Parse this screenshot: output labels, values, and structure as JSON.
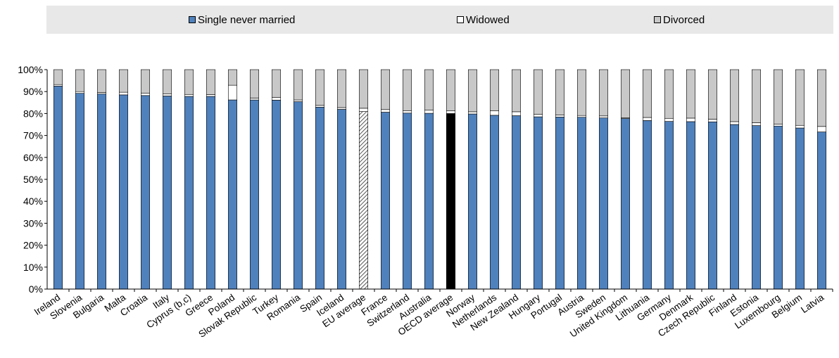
{
  "legend": [
    {
      "label": "Single never married",
      "color": "#4f81bd"
    },
    {
      "label": "Widowed",
      "color": "#ffffff"
    },
    {
      "label": "Divorced",
      "color": "#c8c8c8"
    }
  ],
  "chart_data": {
    "type": "bar",
    "stacked": true,
    "ylim": [
      0,
      100
    ],
    "yticks": [
      "0%",
      "10%",
      "20%",
      "30%",
      "40%",
      "50%",
      "60%",
      "70%",
      "80%",
      "90%",
      "100%"
    ],
    "xlabel": "",
    "ylabel": "",
    "categories": [
      "Ireland",
      "Slovenia",
      "Bulgaria",
      "Malta",
      "Croatia",
      "Italy",
      "Cyprus (b,c)",
      "Greece",
      "Poland",
      "Slovak Republic",
      "Turkey",
      "Romania",
      "Spain",
      "Iceland",
      "EU average",
      "France",
      "Switzerland",
      "Australia",
      "OECD average",
      "Norway",
      "Netherlands",
      "New Zealand",
      "Hungary",
      "Portugal",
      "Austria",
      "Sweden",
      "United Kingdom",
      "Lithuania",
      "Germany",
      "Denmark",
      "Czech Republic",
      "Finland",
      "Estonia",
      "Luxembourg",
      "Belgium",
      "Latvia"
    ],
    "series": [
      {
        "name": "Single never married",
        "values": [
          92.5,
          89.2,
          88.9,
          88.5,
          88.2,
          88.0,
          87.8,
          87.8,
          86.2,
          86.2,
          86.1,
          85.4,
          82.9,
          81.9,
          80.9,
          80.6,
          80.2,
          80.1,
          80.0,
          79.8,
          79.2,
          79.0,
          78.5,
          78.4,
          78.3,
          78.0,
          77.7,
          76.8,
          76.4,
          76.3,
          76.2,
          75.0,
          74.5,
          74.3,
          73.4,
          71.6
        ]
      },
      {
        "name": "Widowed",
        "values": [
          0.7,
          0.8,
          0.7,
          1.2,
          1.0,
          1.0,
          0.9,
          0.8,
          6.7,
          0.8,
          1.2,
          0.8,
          0.8,
          0.8,
          1.5,
          1.2,
          1.0,
          1.4,
          1.2,
          1.0,
          2.0,
          1.8,
          1.2,
          0.9,
          0.8,
          0.9,
          0.4,
          1.4,
          1.4,
          1.6,
          1.2,
          1.3,
          1.3,
          0.8,
          1.2,
          2.5
        ]
      },
      {
        "name": "Divorced",
        "values": [
          6.8,
          10.0,
          10.4,
          10.3,
          10.8,
          11.0,
          11.3,
          11.4,
          7.1,
          13.0,
          12.7,
          13.8,
          16.3,
          17.3,
          17.6,
          18.2,
          18.8,
          18.5,
          18.8,
          19.2,
          18.8,
          19.2,
          20.3,
          20.7,
          20.9,
          21.1,
          21.9,
          21.8,
          22.2,
          22.1,
          22.6,
          23.7,
          24.2,
          24.9,
          25.4,
          25.9
        ]
      }
    ],
    "highlight": {
      "EU average": "hatched",
      "OECD average": "black"
    }
  }
}
